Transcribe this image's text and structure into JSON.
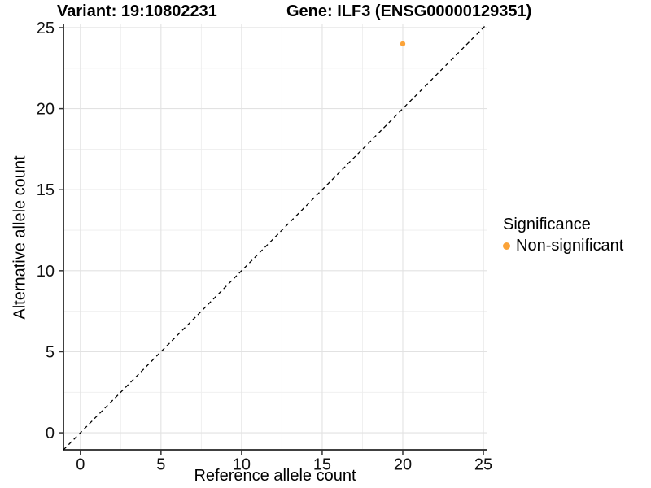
{
  "page": {
    "background": "#ffffff"
  },
  "chart_data": {
    "type": "scatter",
    "title_variant": "Variant: 19:10802231",
    "title_gene": "Gene: ILF3 (ENSG00000129351)",
    "xlabel": "Reference allele count",
    "ylabel": "Alternative allele count",
    "xlim": [
      -1.05,
      25.2
    ],
    "ylim": [
      -1.05,
      25.2
    ],
    "xticks": [
      0,
      5,
      10,
      15,
      20,
      25
    ],
    "yticks": [
      0,
      5,
      10,
      15,
      20,
      25
    ],
    "grid": "major+minor",
    "identity_line": {
      "slope": 1,
      "intercept": 0,
      "style": "dashed",
      "color": "#000000"
    },
    "series": [
      {
        "name": "Non-significant",
        "color": "#FBA338",
        "points": [
          {
            "x": 20,
            "y": 24
          }
        ]
      }
    ],
    "legend": {
      "title": "Significance",
      "position": "right",
      "entries": [
        {
          "label": "Non-significant",
          "color": "#FBA338"
        }
      ]
    }
  },
  "colors": {
    "grid_major": "#e2e2e2",
    "grid_minor": "#eeeeee",
    "axis_line": "#404040",
    "tick_mark": "#333333",
    "tick_text": "#111111"
  }
}
